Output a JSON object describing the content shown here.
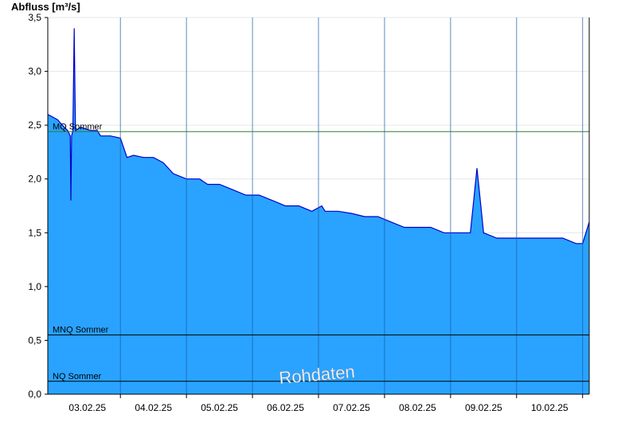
{
  "chart_data": {
    "type": "area",
    "title": "",
    "ylabel": "Abfluss [m³/s]",
    "xlabel": "",
    "ylim": [
      0,
      3.5
    ],
    "xlim": [
      2.4,
      10.6
    ],
    "yticks": [
      0,
      0.5,
      1.0,
      1.5,
      2.0,
      2.5,
      3.0,
      3.5
    ],
    "ytick_labels": [
      "0,0",
      "0,5",
      "1,0",
      "1,5",
      "2,0",
      "2,5",
      "3,0",
      "3,5"
    ],
    "xticks": [
      3,
      4,
      5,
      6,
      7,
      8,
      9,
      10
    ],
    "xtick_labels": [
      "03.02.25",
      "04.02.25",
      "05.02.25",
      "06.02.25",
      "07.02.25",
      "08.02.25",
      "09.02.25",
      "10.02.25"
    ],
    "grid": true,
    "series": [
      {
        "fill_color": "#29a3ff",
        "line_color": "#0000cc",
        "x": [
          2.4,
          2.55,
          2.62,
          2.7,
          2.74,
          2.75,
          2.76,
          2.78,
          2.8,
          2.82,
          2.9,
          3.05,
          3.15,
          3.2,
          3.35,
          3.5,
          3.6,
          3.7,
          3.85,
          4.0,
          4.15,
          4.3,
          4.5,
          4.7,
          4.82,
          5.0,
          5.2,
          5.4,
          5.6,
          5.8,
          6.0,
          6.2,
          6.4,
          6.55,
          6.6,
          6.8,
          7.0,
          7.2,
          7.4,
          7.6,
          7.8,
          8.0,
          8.2,
          8.4,
          8.6,
          8.8,
          8.85,
          8.9,
          8.95,
          9.0,
          9.2,
          9.4,
          9.6,
          9.8,
          10.0,
          10.2,
          10.4,
          10.5,
          10.6
        ],
        "y": [
          2.6,
          2.55,
          2.5,
          2.45,
          2.4,
          1.8,
          2.4,
          2.45,
          3.4,
          2.45,
          2.48,
          2.45,
          2.45,
          2.4,
          2.4,
          2.38,
          2.2,
          2.22,
          2.2,
          2.2,
          2.15,
          2.05,
          2.0,
          2.0,
          1.95,
          1.95,
          1.9,
          1.85,
          1.85,
          1.8,
          1.75,
          1.75,
          1.7,
          1.75,
          1.7,
          1.7,
          1.68,
          1.65,
          1.65,
          1.6,
          1.55,
          1.55,
          1.55,
          1.5,
          1.5,
          1.5,
          1.8,
          2.1,
          1.8,
          1.5,
          1.45,
          1.45,
          1.45,
          1.45,
          1.45,
          1.45,
          1.4,
          1.4,
          1.6
        ]
      }
    ],
    "reference_lines": [
      {
        "label": "MQ Sommer",
        "value": 2.44,
        "color": "#2e7d32"
      },
      {
        "label": "MNQ Sommer",
        "value": 0.55,
        "color": "#000000"
      },
      {
        "label": "NQ Sommer",
        "value": 0.12,
        "color": "#000000"
      }
    ],
    "watermark": "Rohdaten"
  }
}
